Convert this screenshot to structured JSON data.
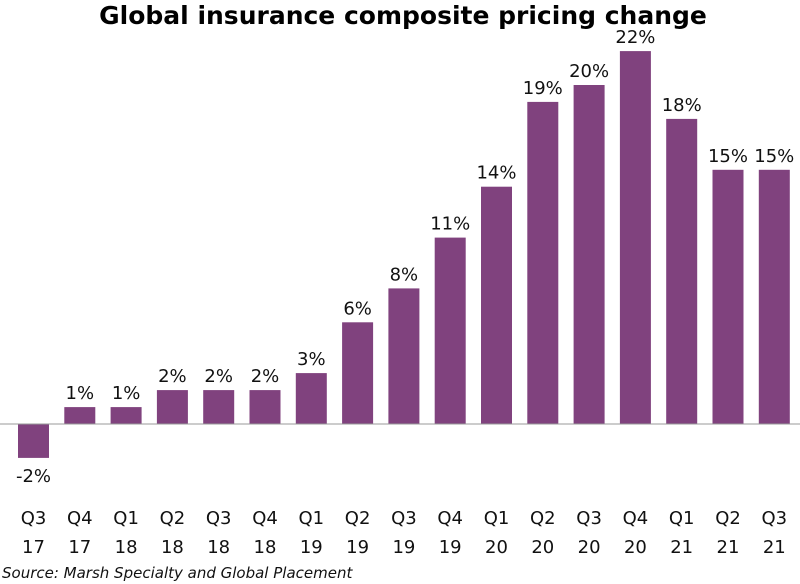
{
  "chart_data": {
    "type": "bar",
    "title": "Global insurance composite pricing change",
    "categories": [
      [
        "Q3",
        "17"
      ],
      [
        "Q4",
        "17"
      ],
      [
        "Q1",
        "18"
      ],
      [
        "Q2",
        "18"
      ],
      [
        "Q3",
        "18"
      ],
      [
        "Q4",
        "18"
      ],
      [
        "Q1",
        "19"
      ],
      [
        "Q2",
        "19"
      ],
      [
        "Q3",
        "19"
      ],
      [
        "Q4",
        "19"
      ],
      [
        "Q1",
        "20"
      ],
      [
        "Q2",
        "20"
      ],
      [
        "Q3",
        "20"
      ],
      [
        "Q4",
        "20"
      ],
      [
        "Q1",
        "21"
      ],
      [
        "Q2",
        "21"
      ],
      [
        "Q3",
        "21"
      ]
    ],
    "values": [
      -2,
      1,
      1,
      2,
      2,
      2,
      3,
      6,
      8,
      11,
      14,
      19,
      20,
      22,
      18,
      15,
      15
    ],
    "value_suffix": "%",
    "ylim": [
      -2,
      22
    ],
    "xlabel": "",
    "ylabel": "",
    "bar_color": "#80427e",
    "source": "Source: Marsh Specialty and Global Placement"
  }
}
